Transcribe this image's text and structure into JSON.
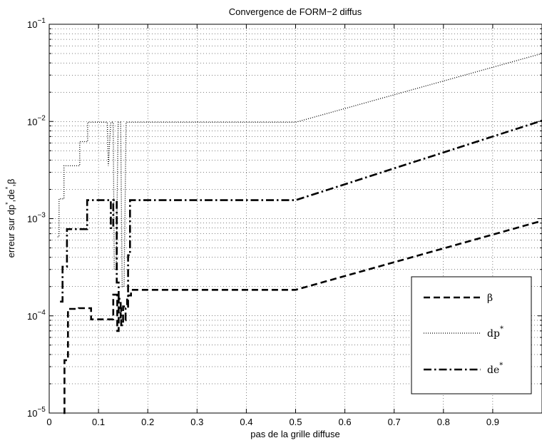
{
  "chart_data": {
    "type": "line",
    "title": "Convergence de FORM−2 diffus",
    "xlabel": "pas de la grille diffuse",
    "ylabel": {
      "prefix": "erreur sur dp",
      "mid": ",de",
      "suffix": ",β",
      "sup": "*"
    },
    "xlim": [
      0,
      1
    ],
    "ylim": [
      1e-05,
      0.1
    ],
    "yscale": "log",
    "grid": true,
    "legend_position": "bottom-right",
    "x_ticks": [
      "0",
      "0.1",
      "0.2",
      "0.3",
      "0.4",
      "0.5",
      "0.6",
      "0.7",
      "0.8",
      "0.9"
    ],
    "y_ticks": [
      {
        "base": "10",
        "exp": "−5"
      },
      {
        "base": "10",
        "exp": "−4"
      },
      {
        "base": "10",
        "exp": "−3"
      },
      {
        "base": "10",
        "exp": "−2"
      },
      {
        "base": "10",
        "exp": "−1"
      }
    ],
    "series": [
      {
        "name": "β",
        "style": "dashed",
        "points": [
          [
            0.029,
            1e-05
          ],
          [
            0.031,
            1e-05
          ],
          [
            0.031,
            3.5e-05
          ],
          [
            0.038,
            3.5e-05
          ],
          [
            0.038,
            0.000118
          ],
          [
            0.06,
            0.000118
          ],
          [
            0.06,
            0.00012
          ],
          [
            0.077,
            0.00012
          ],
          [
            0.077,
            0.00012
          ],
          [
            0.085,
            0.00012
          ],
          [
            0.085,
            9.2e-05
          ],
          [
            0.13,
            9.2e-05
          ],
          [
            0.13,
            0.000165
          ],
          [
            0.138,
            0.000165
          ],
          [
            0.138,
            7e-05
          ],
          [
            0.141,
            7e-05
          ],
          [
            0.141,
            0.00015
          ],
          [
            0.145,
            0.00015
          ],
          [
            0.145,
            9e-05
          ],
          [
            0.15,
            9e-05
          ],
          [
            0.15,
            0.000125
          ],
          [
            0.158,
            0.000125
          ],
          [
            0.158,
            0.000162
          ],
          [
            0.166,
            0.000162
          ],
          [
            0.166,
            0.000185
          ],
          [
            0.174,
            0.000185
          ],
          [
            0.5,
            0.000185
          ],
          [
            1.0,
            0.00095
          ]
        ]
      },
      {
        "name": "dp",
        "name_sup": "*",
        "style": "dotted",
        "points": [
          [
            0.017,
            0.00065
          ],
          [
            0.02,
            0.00065
          ],
          [
            0.02,
            0.0016
          ],
          [
            0.03,
            0.0016
          ],
          [
            0.03,
            0.0035
          ],
          [
            0.062,
            0.0035
          ],
          [
            0.062,
            0.0062
          ],
          [
            0.078,
            0.0062
          ],
          [
            0.078,
            0.0098
          ],
          [
            0.118,
            0.0098
          ],
          [
            0.12,
            0.0035
          ],
          [
            0.125,
            0.0098
          ],
          [
            0.13,
            0.0098
          ],
          [
            0.132,
            0.0003
          ],
          [
            0.136,
            0.0003
          ],
          [
            0.14,
            0.0098
          ],
          [
            0.145,
            0.0098
          ],
          [
            0.148,
            0.0002
          ],
          [
            0.152,
            0.0002
          ],
          [
            0.156,
            0.0098
          ],
          [
            0.5,
            0.0098
          ],
          [
            1.0,
            0.05
          ]
        ]
      },
      {
        "name": "de",
        "name_sup": "*",
        "style": "dashdot",
        "points": [
          [
            0.022,
            0.00014
          ],
          [
            0.027,
            0.00014
          ],
          [
            0.027,
            0.00032
          ],
          [
            0.036,
            0.00032
          ],
          [
            0.036,
            0.00078
          ],
          [
            0.05,
            0.00078
          ],
          [
            0.05,
            0.00078
          ],
          [
            0.077,
            0.00078
          ],
          [
            0.077,
            0.00155
          ],
          [
            0.125,
            0.00155
          ],
          [
            0.125,
            0.0008
          ],
          [
            0.13,
            0.0008
          ],
          [
            0.13,
            0.00155
          ],
          [
            0.137,
            0.00155
          ],
          [
            0.137,
            0.00022
          ],
          [
            0.141,
            0.00022
          ],
          [
            0.141,
            0.00012
          ],
          [
            0.146,
            0.00012
          ],
          [
            0.146,
            8e-05
          ],
          [
            0.15,
            8e-05
          ],
          [
            0.15,
            9e-05
          ],
          [
            0.155,
            9e-05
          ],
          [
            0.155,
            0.00012
          ],
          [
            0.16,
            0.00012
          ],
          [
            0.16,
            0.00042
          ],
          [
            0.164,
            0.00042
          ],
          [
            0.164,
            0.00155
          ],
          [
            0.5,
            0.00155
          ],
          [
            1.0,
            0.0102
          ]
        ]
      }
    ]
  }
}
